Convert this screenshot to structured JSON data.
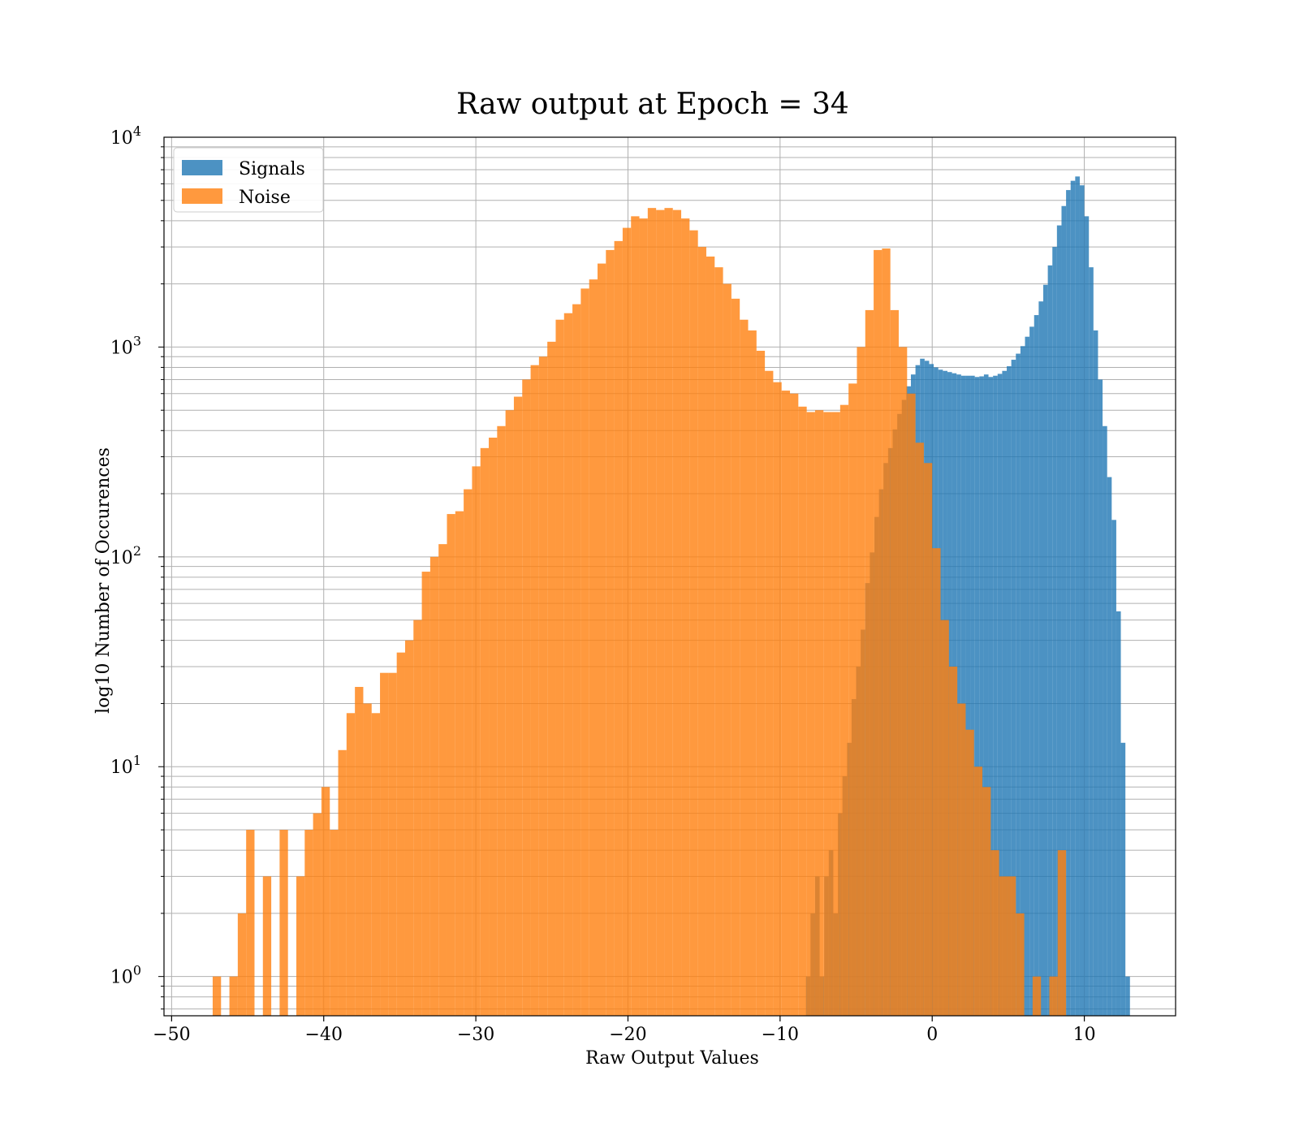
{
  "chart_data": {
    "type": "histogram",
    "title": "Raw output at Epoch = 34",
    "xlabel": "Raw Output Values",
    "ylabel": "log10 Number of Occurences",
    "xlim": [
      -50.5,
      16
    ],
    "ylim": [
      0.65,
      10000
    ],
    "yscale": "log",
    "grid": "on (major and minor y)",
    "legend_position": "upper-left",
    "x_ticks": [
      {
        "value": -50,
        "label": "−50"
      },
      {
        "value": -40,
        "label": "−40"
      },
      {
        "value": -30,
        "label": "−30"
      },
      {
        "value": -20,
        "label": "−20"
      },
      {
        "value": -10,
        "label": "−10"
      },
      {
        "value": 0,
        "label": "0"
      },
      {
        "value": 10,
        "label": "10"
      }
    ],
    "y_ticks": [
      {
        "value": 1,
        "base": "10",
        "exp": "0"
      },
      {
        "value": 10,
        "base": "10",
        "exp": "1"
      },
      {
        "value": 100,
        "base": "10",
        "exp": "2"
      },
      {
        "value": 1000,
        "base": "10",
        "exp": "3"
      },
      {
        "value": 10000,
        "base": "10",
        "exp": "4"
      }
    ],
    "series": [
      {
        "name": "Signals",
        "color": "#1f77b4",
        "bins": [
          [
            -8.3,
            -8.0,
            1
          ],
          [
            -8.0,
            -7.7,
            2
          ],
          [
            -7.7,
            -7.4,
            3
          ],
          [
            -7.4,
            -7.1,
            1
          ],
          [
            -7.1,
            -6.8,
            3
          ],
          [
            -6.8,
            -6.5,
            4
          ],
          [
            -6.5,
            -6.2,
            2
          ],
          [
            -6.2,
            -5.9,
            6
          ],
          [
            -5.9,
            -5.6,
            9
          ],
          [
            -5.6,
            -5.3,
            13
          ],
          [
            -5.3,
            -5.0,
            21
          ],
          [
            -5.0,
            -4.7,
            30
          ],
          [
            -4.7,
            -4.4,
            45
          ],
          [
            -4.4,
            -4.1,
            75
          ],
          [
            -4.1,
            -3.8,
            105
          ],
          [
            -3.8,
            -3.5,
            155
          ],
          [
            -3.5,
            -3.2,
            210
          ],
          [
            -3.2,
            -2.9,
            280
          ],
          [
            -2.9,
            -2.6,
            330
          ],
          [
            -2.6,
            -2.3,
            405
          ],
          [
            -2.3,
            -2.0,
            480
          ],
          [
            -2.0,
            -1.7,
            560
          ],
          [
            -1.7,
            -1.4,
            650
          ],
          [
            -1.4,
            -1.1,
            740
          ],
          [
            -1.1,
            -0.8,
            820
          ],
          [
            -0.8,
            -0.5,
            880
          ],
          [
            -0.5,
            -0.2,
            860
          ],
          [
            -0.2,
            0.1,
            830
          ],
          [
            0.1,
            0.4,
            800
          ],
          [
            0.4,
            0.7,
            780
          ],
          [
            0.7,
            1.0,
            770
          ],
          [
            1.0,
            1.3,
            760
          ],
          [
            1.3,
            1.6,
            750
          ],
          [
            1.6,
            1.9,
            740
          ],
          [
            1.9,
            2.2,
            730
          ],
          [
            2.2,
            2.5,
            730
          ],
          [
            2.5,
            2.8,
            730
          ],
          [
            2.8,
            3.1,
            720
          ],
          [
            3.1,
            3.4,
            725
          ],
          [
            3.4,
            3.7,
            740
          ],
          [
            3.7,
            4.0,
            720
          ],
          [
            4.0,
            4.3,
            730
          ],
          [
            4.3,
            4.6,
            745
          ],
          [
            4.6,
            4.9,
            770
          ],
          [
            4.9,
            5.2,
            810
          ],
          [
            5.2,
            5.5,
            870
          ],
          [
            5.5,
            5.8,
            930
          ],
          [
            5.8,
            6.1,
            1010
          ],
          [
            6.1,
            6.4,
            1120
          ],
          [
            6.4,
            6.7,
            1250
          ],
          [
            6.7,
            7.0,
            1420
          ],
          [
            7.0,
            7.3,
            1650
          ],
          [
            7.3,
            7.6,
            1980
          ],
          [
            7.6,
            7.9,
            2450
          ],
          [
            7.9,
            8.2,
            3000
          ],
          [
            8.2,
            8.5,
            3800
          ],
          [
            8.5,
            8.8,
            4700
          ],
          [
            8.8,
            9.1,
            5600
          ],
          [
            9.1,
            9.4,
            6200
          ],
          [
            9.4,
            9.7,
            6500
          ],
          [
            9.7,
            10.0,
            5900
          ],
          [
            10.0,
            10.3,
            4200
          ],
          [
            10.3,
            10.6,
            2400
          ],
          [
            10.6,
            10.9,
            1200
          ],
          [
            10.9,
            11.2,
            700
          ],
          [
            11.2,
            11.5,
            420
          ],
          [
            11.5,
            11.8,
            240
          ],
          [
            11.8,
            12.1,
            150
          ],
          [
            12.1,
            12.4,
            55
          ],
          [
            12.4,
            12.7,
            13
          ],
          [
            12.7,
            13.0,
            1
          ]
        ]
      },
      {
        "name": "Noise",
        "color": "#ff7f0e",
        "bins": [
          [
            -47.3,
            -46.75,
            1
          ],
          [
            -46.2,
            -45.65,
            1
          ],
          [
            -45.65,
            -45.1,
            2
          ],
          [
            -45.1,
            -44.55,
            5
          ],
          [
            -44.0,
            -43.45,
            3
          ],
          [
            -42.9,
            -42.35,
            5
          ],
          [
            -41.8,
            -41.25,
            3
          ],
          [
            -41.25,
            -40.7,
            5
          ],
          [
            -40.7,
            -40.15,
            6
          ],
          [
            -40.15,
            -39.6,
            8
          ],
          [
            -39.6,
            -39.05,
            5
          ],
          [
            -39.05,
            -38.5,
            12
          ],
          [
            -38.5,
            -37.95,
            18
          ],
          [
            -37.95,
            -37.4,
            24
          ],
          [
            -37.4,
            -36.85,
            20
          ],
          [
            -36.85,
            -36.3,
            18
          ],
          [
            -36.3,
            -35.75,
            28
          ],
          [
            -35.75,
            -35.2,
            28
          ],
          [
            -35.2,
            -34.65,
            35
          ],
          [
            -34.65,
            -34.1,
            40
          ],
          [
            -34.1,
            -33.55,
            50
          ],
          [
            -33.55,
            -33.0,
            85
          ],
          [
            -33.0,
            -32.45,
            100
          ],
          [
            -32.45,
            -31.9,
            115
          ],
          [
            -31.9,
            -31.35,
            160
          ],
          [
            -31.35,
            -30.8,
            165
          ],
          [
            -30.8,
            -30.25,
            210
          ],
          [
            -30.25,
            -29.7,
            270
          ],
          [
            -29.7,
            -29.15,
            330
          ],
          [
            -29.15,
            -28.6,
            370
          ],
          [
            -28.6,
            -28.05,
            420
          ],
          [
            -28.05,
            -27.5,
            500
          ],
          [
            -27.5,
            -26.95,
            580
          ],
          [
            -26.95,
            -26.4,
            700
          ],
          [
            -26.4,
            -25.85,
            820
          ],
          [
            -25.85,
            -25.3,
            900
          ],
          [
            -25.3,
            -24.75,
            1060
          ],
          [
            -24.75,
            -24.2,
            1350
          ],
          [
            -24.2,
            -23.65,
            1450
          ],
          [
            -23.65,
            -23.1,
            1600
          ],
          [
            -23.1,
            -22.55,
            1900
          ],
          [
            -22.55,
            -22.0,
            2100
          ],
          [
            -22.0,
            -21.45,
            2500
          ],
          [
            -21.45,
            -20.9,
            2900
          ],
          [
            -20.9,
            -20.35,
            3200
          ],
          [
            -20.35,
            -19.8,
            3700
          ],
          [
            -19.8,
            -19.25,
            4200
          ],
          [
            -19.25,
            -18.7,
            4100
          ],
          [
            -18.7,
            -18.15,
            4600
          ],
          [
            -18.15,
            -17.6,
            4500
          ],
          [
            -17.6,
            -17.05,
            4600
          ],
          [
            -17.05,
            -16.5,
            4500
          ],
          [
            -16.5,
            -15.95,
            4100
          ],
          [
            -15.95,
            -15.4,
            3600
          ],
          [
            -15.4,
            -14.85,
            3000
          ],
          [
            -14.85,
            -14.3,
            2700
          ],
          [
            -14.3,
            -13.75,
            2400
          ],
          [
            -13.75,
            -13.2,
            2000
          ],
          [
            -13.2,
            -12.65,
            1700
          ],
          [
            -12.65,
            -12.1,
            1350
          ],
          [
            -12.1,
            -11.55,
            1200
          ],
          [
            -11.55,
            -11.0,
            960
          ],
          [
            -11.0,
            -10.45,
            770
          ],
          [
            -10.45,
            -9.9,
            680
          ],
          [
            -9.9,
            -9.35,
            620
          ],
          [
            -9.35,
            -8.8,
            600
          ],
          [
            -8.8,
            -8.25,
            520
          ],
          [
            -8.25,
            -7.7,
            490
          ],
          [
            -7.7,
            -7.15,
            500
          ],
          [
            -7.15,
            -6.6,
            490
          ],
          [
            -6.6,
            -6.05,
            490
          ],
          [
            -6.05,
            -5.5,
            530
          ],
          [
            -5.5,
            -4.95,
            670
          ],
          [
            -4.95,
            -4.4,
            1000
          ],
          [
            -4.4,
            -3.85,
            1500
          ],
          [
            -3.85,
            -3.3,
            2900
          ],
          [
            -3.3,
            -2.75,
            2950
          ],
          [
            -2.75,
            -2.2,
            1500
          ],
          [
            -2.2,
            -1.65,
            1000
          ],
          [
            -1.65,
            -1.1,
            600
          ],
          [
            -1.1,
            -0.55,
            350
          ],
          [
            -0.55,
            0.0,
            280
          ],
          [
            0.0,
            0.55,
            110
          ],
          [
            0.55,
            1.1,
            50
          ],
          [
            1.1,
            1.65,
            30
          ],
          [
            1.65,
            2.2,
            20
          ],
          [
            2.2,
            2.75,
            15
          ],
          [
            2.75,
            3.3,
            10
          ],
          [
            3.3,
            3.85,
            8
          ],
          [
            3.85,
            4.4,
            4
          ],
          [
            4.4,
            4.95,
            3
          ],
          [
            4.95,
            5.5,
            3
          ],
          [
            5.5,
            6.05,
            2
          ],
          [
            6.6,
            7.15,
            1
          ],
          [
            7.7,
            8.25,
            1
          ],
          [
            8.25,
            8.8,
            4
          ]
        ]
      }
    ]
  }
}
